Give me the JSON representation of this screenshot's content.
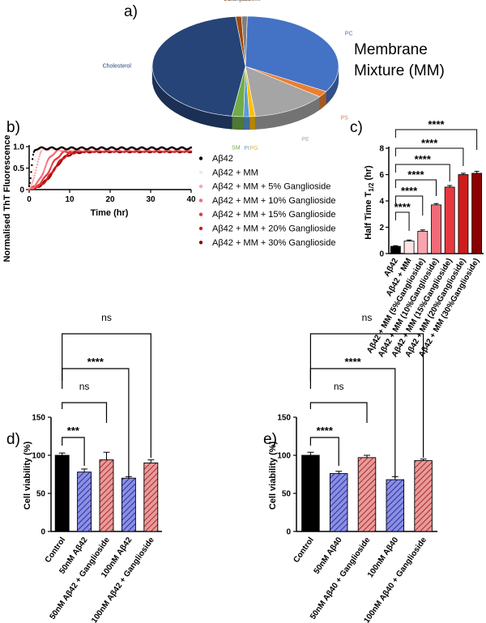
{
  "chart_data": [
    {
      "panel": "a)",
      "type": "pie",
      "title": "Membrane Mixture (MM)",
      "title_lines": [
        "Membrane",
        "Mixture (MM)"
      ],
      "slices": [
        {
          "label": "PC",
          "value": 33,
          "color": "#4472C4"
        },
        {
          "label": "PS",
          "value": 2,
          "color": "#ED7D31"
        },
        {
          "label": "PE",
          "value": 13,
          "color": "#A5A5A5"
        },
        {
          "label": "PG",
          "value": 1,
          "color": "#FFC000"
        },
        {
          "label": "PI",
          "value": 1,
          "color": "#5B9BD5"
        },
        {
          "label": "SM",
          "value": 2,
          "color": "#70AD47"
        },
        {
          "label": "Cholesterol",
          "value": 46,
          "color": "#264478"
        },
        {
          "label": "Ceramides",
          "value": 1,
          "color": "#9E480E"
        },
        {
          "label": "Gangliosides",
          "value": 1,
          "color": "#7F7F7F"
        }
      ]
    },
    {
      "panel": "b)",
      "type": "scatter",
      "xlabel": "Time (hr)",
      "ylabel": "Normalised ThT Fluorescence",
      "xlim": [
        0,
        40
      ],
      "ylim": [
        0,
        1
      ],
      "xticks": [
        "0",
        "10",
        "20",
        "30",
        "40"
      ],
      "yticks": [
        "0",
        "0.5",
        "1.0"
      ],
      "series": [
        {
          "name": "Aβ42",
          "color": "#000000",
          "t_half": 0.6,
          "plateau": 0.96
        },
        {
          "name": "Aβ42 + MM",
          "color": "#FDE2E4",
          "t_half": 1.0,
          "plateau": 0.95
        },
        {
          "name": "Aβ42 + MM + 5% Ganglioside",
          "color": "#F8A5AD",
          "t_half": 1.7,
          "plateau": 0.95
        },
        {
          "name": "Aβ42 + MM + 10% Ganglioside",
          "color": "#F06B77",
          "t_half": 3.7,
          "plateau": 0.93
        },
        {
          "name": "Aβ42 + MM + 15% Ganglioside",
          "color": "#E8383F",
          "t_half": 5.0,
          "plateau": 0.92
        },
        {
          "name": "Aβ42 + MM + 20% Ganglioside",
          "color": "#D01C1C",
          "t_half": 6.0,
          "plateau": 0.9
        },
        {
          "name": "Aβ42 + MM + 30% Ganglioside",
          "color": "#8B0000",
          "t_half": 6.1,
          "plateau": 0.89
        }
      ]
    },
    {
      "panel": "c)",
      "type": "bar",
      "ylabel": "Half Time T",
      "ylabel_sub": "1/2",
      "ylabel_unit": " (hr)",
      "ylim": [
        0,
        8
      ],
      "yticks": [
        "0",
        "2",
        "4",
        "6",
        "8"
      ],
      "categories": [
        "Aβ42",
        "Aβ42 + MM",
        "Aβ42 + MM (5%Ganglioside)",
        "Aβ42 + MM (10%Ganglioside)",
        "Aβ42 + MM (15%Ganglioside)",
        "Aβ42 + MM (20%Ganglioside)",
        "Aβ42 + MM (30%Ganglioside)"
      ],
      "values": [
        0.55,
        0.95,
        1.7,
        3.7,
        5.05,
        6.0,
        6.1
      ],
      "errors": [
        0.05,
        0.08,
        0.1,
        0.1,
        0.12,
        0.1,
        0.15
      ],
      "colors": [
        "#000000",
        "#FDE2E4",
        "#F8A5AD",
        "#F06B77",
        "#E8383F",
        "#D01C1C",
        "#8B0000"
      ],
      "comparisons": [
        {
          "from": 0,
          "to": 1,
          "label": "****"
        },
        {
          "from": 0,
          "to": 2,
          "label": "****"
        },
        {
          "from": 0,
          "to": 3,
          "label": "****"
        },
        {
          "from": 0,
          "to": 4,
          "label": "****"
        },
        {
          "from": 0,
          "to": 5,
          "label": "****"
        },
        {
          "from": 0,
          "to": 6,
          "label": "****"
        }
      ]
    },
    {
      "panel": "d)",
      "type": "bar",
      "ylabel": "Cell viability (%)",
      "ylim": [
        0,
        150
      ],
      "yticks": [
        "0",
        "50",
        "100",
        "150"
      ],
      "categories": [
        "Control",
        "50nM Aβ42",
        "50nM Aβ42 + Ganglioside",
        "100nM Aβ42",
        "100nM Aβ42 + Ganglioside"
      ],
      "values": [
        100,
        78,
        94,
        70,
        90
      ],
      "errors": [
        3,
        4,
        10,
        2,
        4
      ],
      "comparisons": [
        {
          "from": 0,
          "to": 1,
          "label": "***"
        },
        {
          "from": 0,
          "to": 2,
          "label": "ns"
        },
        {
          "from": 0,
          "to": 3,
          "label": "****"
        },
        {
          "from": 0,
          "to": 4,
          "label": "ns"
        }
      ]
    },
    {
      "panel": "e)",
      "type": "bar",
      "ylabel": "Cell viability (%)",
      "ylim": [
        0,
        150
      ],
      "yticks": [
        "0",
        "50",
        "100",
        "150"
      ],
      "categories": [
        "Control",
        "50nM Aβ40",
        "50nM Aβ40 + Ganglioside",
        "100nM Aβ40",
        "100nM Aβ40 + Ganglioside"
      ],
      "values": [
        100,
        76,
        97,
        68,
        93
      ],
      "errors": [
        4,
        3,
        3,
        4,
        2
      ],
      "comparisons": [
        {
          "from": 0,
          "to": 1,
          "label": "****"
        },
        {
          "from": 0,
          "to": 2,
          "label": "ns"
        },
        {
          "from": 0,
          "to": 3,
          "label": "****"
        },
        {
          "from": 0,
          "to": 4,
          "label": "ns"
        }
      ]
    }
  ]
}
